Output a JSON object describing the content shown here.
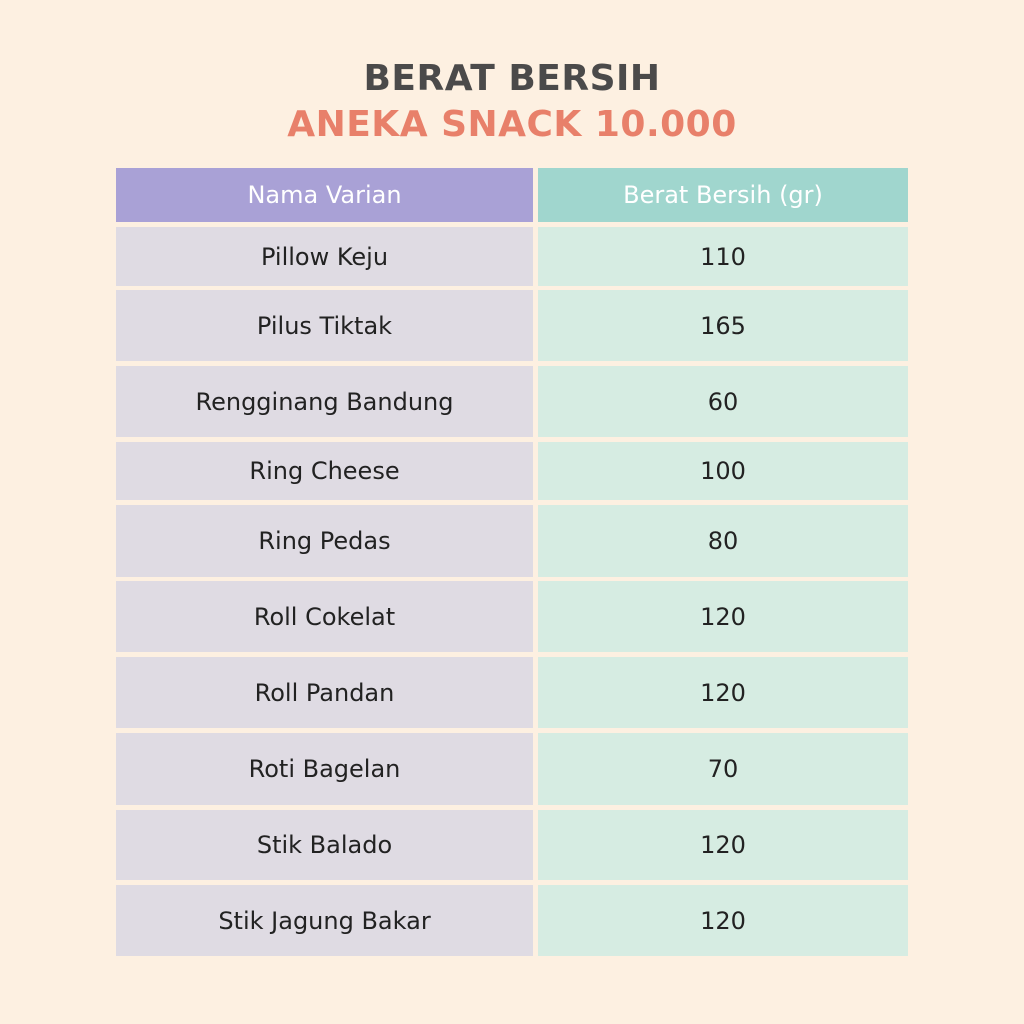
{
  "title": {
    "line1": "BERAT BERSIH",
    "line2": "ANEKA SNACK 10.000"
  },
  "colors": {
    "background": "#fdf0e1",
    "title": "#4b4a4a",
    "accent": "#e8806a",
    "header_left": "#a9a1d6",
    "header_right": "#a0d6ce",
    "cell_left": "#dfdbe3",
    "cell_right": "#d6ece2"
  },
  "table": {
    "headers": [
      "Nama Varian",
      "Berat Bersih (gr)"
    ],
    "rows": [
      [
        "Pillow Keju",
        "110"
      ],
      [
        "Pilus Tiktak",
        "165"
      ],
      [
        "Rengginang Bandung",
        "60"
      ],
      [
        "Ring Cheese",
        "100"
      ],
      [
        "Ring Pedas",
        "80"
      ],
      [
        "Roll Cokelat",
        "120"
      ],
      [
        "Roll Pandan",
        "120"
      ],
      [
        "Roti Bagelan",
        "70"
      ],
      [
        "Stik Balado",
        "120"
      ],
      [
        "Stik Jagung Bakar",
        "120"
      ]
    ]
  }
}
